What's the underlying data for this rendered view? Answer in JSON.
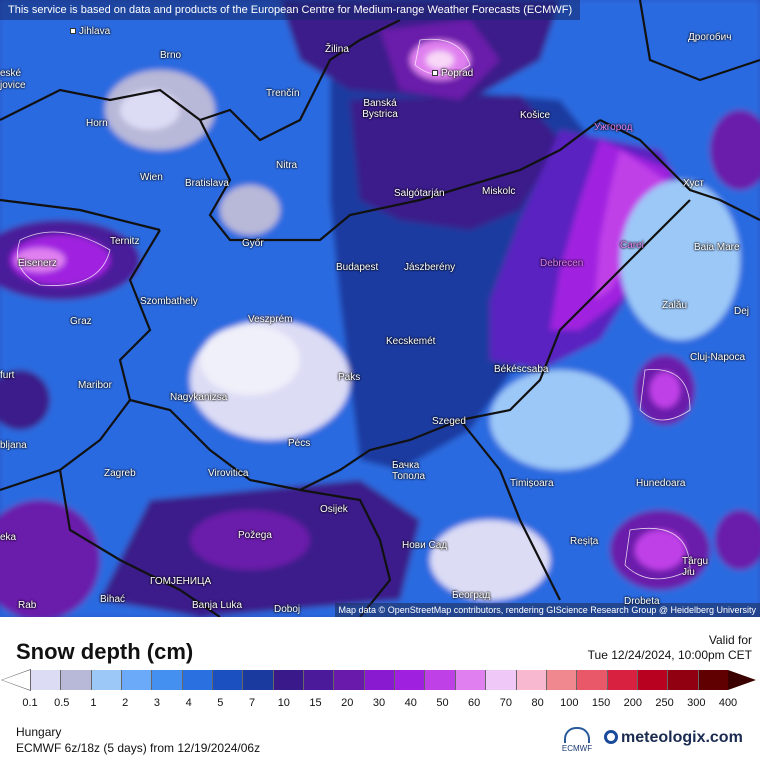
{
  "notice": "This service is based on data and products of the European Centre for Medium-range Weather Forecasts (ECMWF)",
  "attribution": "Map data © OpenStreetMap contributors, rendering GIScience Research Group @ Heidelberg University",
  "legend": {
    "title": "Snow depth (cm)",
    "valid_label": "Valid for",
    "valid_time": "Tue 12/24/2024, 10:00pm CET",
    "region": "Hungary",
    "model_run": "ECMWF 6z/18z (5 days) from 12/19/2024/06z",
    "ecmwf_logo_text": "ECMWF",
    "brand": "meteologix.com",
    "ticks": [
      "0.1",
      "0.5",
      "1",
      "2",
      "3",
      "4",
      "5",
      "7",
      "10",
      "15",
      "20",
      "30",
      "40",
      "50",
      "60",
      "70",
      "80",
      "100",
      "150",
      "200",
      "250",
      "300",
      "400"
    ],
    "colors": [
      "#dcdcf5",
      "#b8b8d8",
      "#9cc8f8",
      "#6aaaf8",
      "#4490f0",
      "#2a70e0",
      "#1a50c0",
      "#1a3aa0",
      "#3a1a8a",
      "#4a1a9a",
      "#6a1aaa",
      "#8a1ad0",
      "#a020e0",
      "#c040e8",
      "#e080f0",
      "#f0c8f8",
      "#f8b8d0",
      "#f08890",
      "#e85868",
      "#d82040",
      "#b80020",
      "#900010",
      "#600000"
    ]
  },
  "cities": [
    {
      "name": "Jihlava"
    },
    {
      "name": "Brno"
    },
    {
      "name": "Žilina"
    },
    {
      "name": "Poprad"
    },
    {
      "name": "Дрогобич"
    },
    {
      "name": "Trenčín"
    },
    {
      "name": "Banská Bystrica"
    },
    {
      "name": "Košice"
    },
    {
      "name": "Ужгород"
    },
    {
      "name": "Horn"
    },
    {
      "name": "Wien"
    },
    {
      "name": "Bratislava"
    },
    {
      "name": "Nitra"
    },
    {
      "name": "Salgótarján"
    },
    {
      "name": "Miskolc"
    },
    {
      "name": "Хуст"
    },
    {
      "name": "Ternitz"
    },
    {
      "name": "Győr"
    },
    {
      "name": "Budapest"
    },
    {
      "name": "Jászberény"
    },
    {
      "name": "Debrecen"
    },
    {
      "name": "Carei"
    },
    {
      "name": "Baia Mare"
    },
    {
      "name": "Eisenerz"
    },
    {
      "name": "Szombathely"
    },
    {
      "name": "Zalău"
    },
    {
      "name": "Graz"
    },
    {
      "name": "Veszprém"
    },
    {
      "name": "Kecskemét"
    },
    {
      "name": "Dej"
    },
    {
      "name": "Cluj-Napoca"
    },
    {
      "name": "Maribor"
    },
    {
      "name": "Paks"
    },
    {
      "name": "Békéscsaba"
    },
    {
      "name": "Nagykanizsa"
    },
    {
      "name": "Szeged"
    },
    {
      "name": "Pécs"
    },
    {
      "name": "Zagreb"
    },
    {
      "name": "Virovitica"
    },
    {
      "name": "Бачка Топола"
    },
    {
      "name": "Timișoara"
    },
    {
      "name": "Hunedoara"
    },
    {
      "name": "Osijek"
    },
    {
      "name": "Požega"
    },
    {
      "name": "Нови Сад"
    },
    {
      "name": "Reșița"
    },
    {
      "name": "Târgu Jiu"
    },
    {
      "name": "ГОМЈЕНИЦА"
    },
    {
      "name": "Bihać"
    },
    {
      "name": "Banja Luka"
    },
    {
      "name": "Doboj"
    },
    {
      "name": "Београд"
    },
    {
      "name": "Drobeta"
    }
  ],
  "edge_labels": {
    "leska": "eské",
    "jovice": "jovice",
    "lfurt": "furt",
    "ljana": "bljana",
    "leka": "eka",
    "rab": "Rab"
  }
}
